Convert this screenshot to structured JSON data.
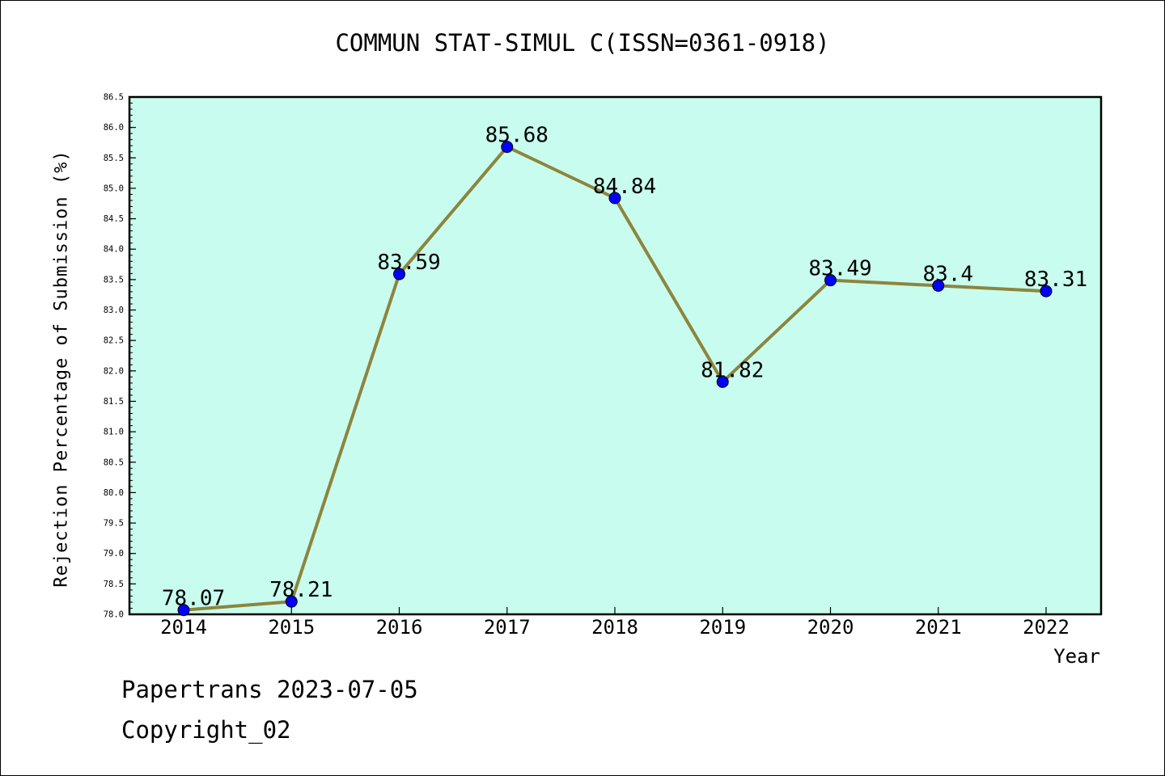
{
  "chart_data": {
    "type": "line",
    "title": "COMMUN STAT-SIMUL C(ISSN=0361-0918)",
    "xlabel": "Year",
    "ylabel": "Rejection Percentage of Submission (%)",
    "categories": [
      "2014",
      "2015",
      "2016",
      "2017",
      "2018",
      "2019",
      "2020",
      "2021",
      "2022"
    ],
    "series": [
      {
        "values": [
          78.07,
          78.21,
          83.59,
          85.68,
          84.84,
          81.82,
          83.49,
          83.4,
          83.31
        ],
        "labels": [
          "78.07",
          "78.21",
          "83.59",
          "85.68",
          "84.84",
          "81.82",
          "83.49",
          "83.4",
          "83.31"
        ]
      }
    ],
    "ylim": [
      78.0,
      86.5
    ],
    "yticks": [
      "78.0",
      "78.5",
      "79.0",
      "79.5",
      "80.0",
      "80.5",
      "81.0",
      "81.5",
      "82.0",
      "82.5",
      "83.0",
      "83.5",
      "84.0",
      "84.5",
      "85.0",
      "85.5",
      "86.0",
      "86.5"
    ],
    "grid": false,
    "colors": {
      "plot_background": "#c8fcee",
      "line": "#8c853d",
      "marker": "#0000ff"
    }
  },
  "footer": {
    "line1": "Papertrans 2023-07-05",
    "line2": "Copyright_02"
  }
}
